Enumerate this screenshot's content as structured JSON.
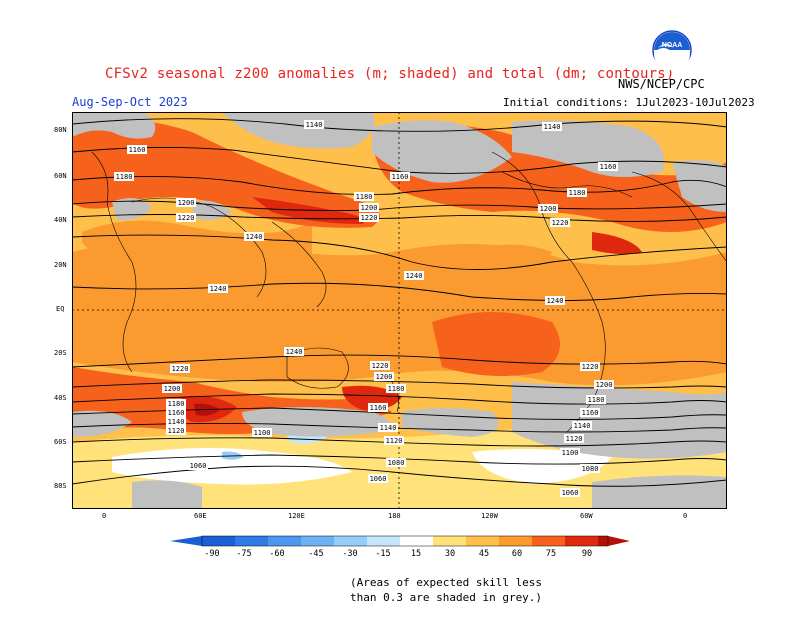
{
  "header": {
    "title": "CFSv2 seasonal z200 anomalies (m; shaded) and total (dm; contours)",
    "agency": "NWS/NCEP/CPC",
    "season": "Aug-Sep-Oct 2023",
    "initial_conditions": "Initial conditions: 1Jul2023-10Jul2023",
    "logo_text": "NOAA"
  },
  "map": {
    "lat_labels": [
      "80N",
      "60N",
      "40N",
      "20N",
      "EQ",
      "20S",
      "40S",
      "60S",
      "80S"
    ],
    "lon_labels": [
      "0",
      "60E",
      "120E",
      "180",
      "120W",
      "60W",
      "0"
    ],
    "contour_labels": [
      "1140",
      "1160",
      "1180",
      "1200",
      "1220",
      "1240",
      "1120",
      "1100",
      "1080",
      "1060"
    ]
  },
  "colorbar": {
    "ticks": [
      "-90",
      "-75",
      "-60",
      "-45",
      "-30",
      "-15",
      "15",
      "30",
      "45",
      "60",
      "75",
      "90"
    ],
    "colors": [
      "#1b5fd6",
      "#2f7be6",
      "#4c98f0",
      "#6cb2f5",
      "#95cdf8",
      "#c4e7fb",
      "#ffffff",
      "#ffe27a",
      "#fec04b",
      "#fb9a2f",
      "#f6621c",
      "#e0280e",
      "#b4100a"
    ]
  },
  "notes": {
    "line1": "(Areas of expected skill less",
    "line2": "than 0.3 are shaded in grey.)"
  },
  "palette": {
    "grey": "#c0c0c0",
    "title_red": "#e8231d",
    "season_blue": "#1a3fd0"
  }
}
